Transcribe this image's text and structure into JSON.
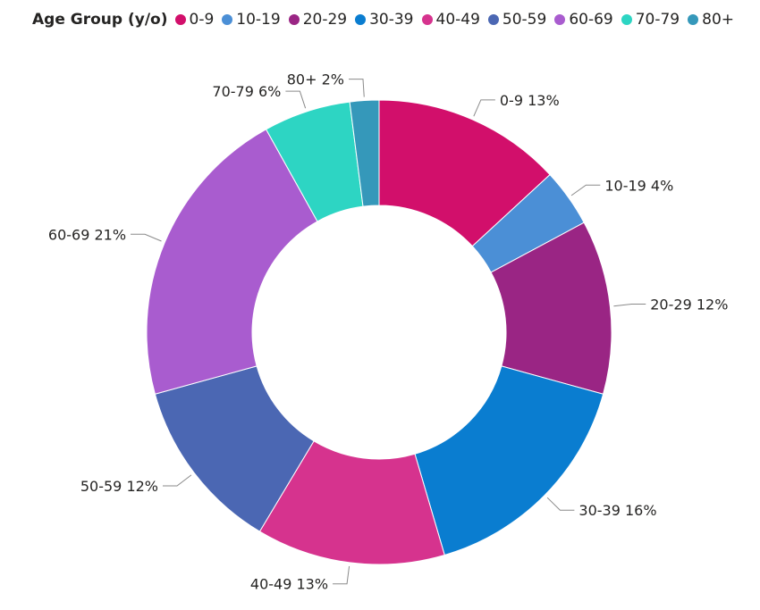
{
  "chart_data": {
    "type": "pie",
    "variant": "donut",
    "legend": {
      "title": "Age Group (y/o)",
      "position": "top-left"
    },
    "slices": [
      {
        "label": "0-9",
        "value": 13,
        "display": "0-9 13%",
        "color": "#d20f6b"
      },
      {
        "label": "10-19",
        "value": 4,
        "display": "10-19 4%",
        "color": "#4b8fd6"
      },
      {
        "label": "20-29",
        "value": 12,
        "display": "20-29 12%",
        "color": "#9a2584"
      },
      {
        "label": "30-39",
        "value": 16,
        "display": "30-39 16%",
        "color": "#0a7dd0"
      },
      {
        "label": "40-49",
        "value": 13,
        "display": "40-49 13%",
        "color": "#d6338e"
      },
      {
        "label": "50-59",
        "value": 12,
        "display": "50-59 12%",
        "color": "#4b67b3"
      },
      {
        "label": "60-69",
        "value": 21,
        "display": "60-69 21%",
        "color": "#a95ccf"
      },
      {
        "label": "70-79",
        "value": 6,
        "display": "70-79 6%",
        "color": "#2dd5c3"
      },
      {
        "label": "80+",
        "value": 2,
        "display": "80+ 2%",
        "color": "#3598ba"
      }
    ]
  }
}
